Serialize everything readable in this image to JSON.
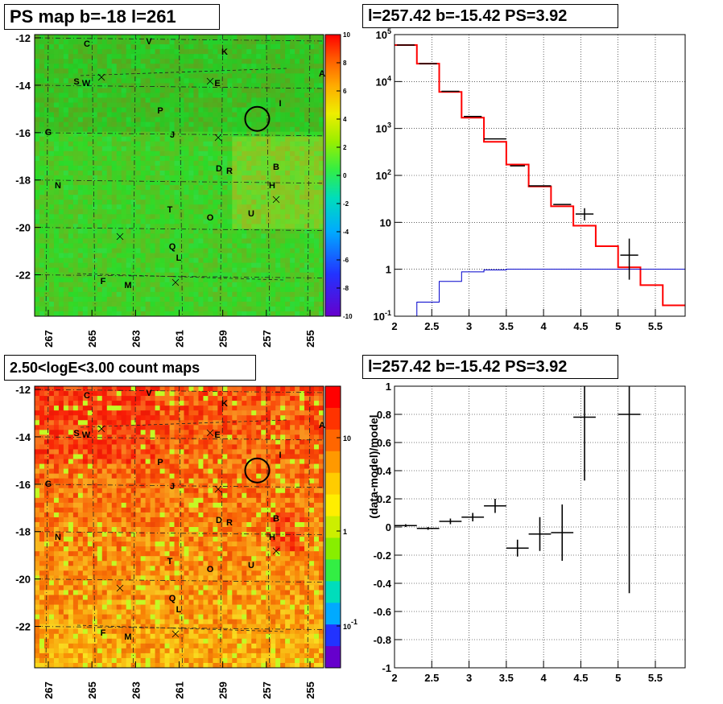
{
  "panels": {
    "ps_map_title": "PS map b=-18 l=261",
    "spectrum_title": "l=257.42 b=-15.42 PS=3.92",
    "count_map_title": "2.50<logE<3.00 count maps",
    "residual_title": "l=257.42 b=-15.42 PS=3.92"
  },
  "maps": {
    "b_ticks": [
      "-12",
      "-14",
      "-16",
      "-18",
      "-20",
      "-22"
    ],
    "l_ticks": [
      "267",
      "265",
      "263",
      "261",
      "259",
      "257",
      "255"
    ],
    "labels": [
      "C",
      "V",
      "K",
      "A",
      "S",
      "W",
      "E",
      "I",
      "P",
      "G",
      "J",
      "D",
      "R",
      "B",
      "N",
      "H",
      "T",
      "O",
      "U",
      "Q",
      "L",
      "F",
      "M"
    ],
    "ps_colorbar": [
      "10",
      "8",
      "6",
      "4",
      "2",
      "0",
      "-2",
      "-4",
      "-6",
      "-8",
      "-10"
    ],
    "count_colorbar": [
      "10",
      "1",
      "10-1"
    ]
  },
  "chart_data": [
    {
      "type": "heatmap",
      "title": "PS map b=-18 l=261",
      "x_ticks": [
        267,
        265,
        263,
        261,
        259,
        257,
        255
      ],
      "y_ticks": [
        -12,
        -14,
        -16,
        -18,
        -20,
        -22
      ],
      "colorbar_range": [
        -10,
        10
      ],
      "source_marker": {
        "l": 257.42,
        "b": -15.42
      }
    },
    {
      "type": "line",
      "title": "l=257.42 b=-15.42 PS=3.92",
      "log_y": true,
      "xlim": [
        2,
        5.9
      ],
      "ylim": [
        0.1,
        100000
      ],
      "x_ticks": [
        2,
        2.5,
        3,
        3.5,
        4,
        4.5,
        5,
        5.5
      ],
      "y_ticks": [
        "10-1",
        "1",
        "10",
        "102",
        "103",
        "104",
        "105"
      ],
      "grid": true,
      "series": [
        {
          "color": "#ff0000",
          "edges": [
            2.0,
            2.3,
            2.6,
            2.9,
            3.2,
            3.5,
            3.8,
            4.1,
            4.4,
            4.7,
            5.0,
            5.3,
            5.6,
            5.9
          ],
          "values": [
            60000,
            24000,
            6000,
            1700,
            520,
            170,
            58,
            22,
            8.5,
            3.1,
            1.1,
            0.46,
            0.17
          ]
        },
        {
          "color": "#0000cc",
          "edges": [
            2.3,
            2.6,
            2.9,
            3.2,
            3.5,
            3.8,
            4.1,
            4.4,
            4.7,
            5.0,
            5.3,
            5.6,
            5.9
          ],
          "values": [
            0.2,
            0.55,
            0.88,
            0.97,
            1.0,
            1.0,
            1.0,
            1.0,
            1.0,
            1.0,
            1.0,
            1.0
          ]
        },
        {
          "color": "#000000",
          "points": [
            {
              "x": 2.15,
              "y": 60000
            },
            {
              "x": 2.45,
              "y": 24000
            },
            {
              "x": 2.75,
              "y": 6200
            },
            {
              "x": 3.05,
              "y": 1800
            },
            {
              "x": 3.35,
              "y": 600,
              "xerr": 0.15
            },
            {
              "x": 3.65,
              "y": 160,
              "xerr": 0.1
            },
            {
              "x": 3.95,
              "y": 60,
              "xerr": 0.15
            },
            {
              "x": 4.25,
              "y": 24
            },
            {
              "x": 4.55,
              "y": 15,
              "ylo": 11,
              "yhi": 20
            },
            {
              "x": 5.15,
              "y": 2,
              "ylo": 0.6,
              "yhi": 4.5
            }
          ]
        }
      ]
    },
    {
      "type": "heatmap",
      "title": "2.50<logE<3.00 count maps",
      "x_ticks": [
        267,
        265,
        263,
        261,
        259,
        257,
        255
      ],
      "y_ticks": [
        -12,
        -14,
        -16,
        -18,
        -20,
        -22
      ],
      "colorbar_scale": "log",
      "source_marker": {
        "l": 257.42,
        "b": -15.42
      }
    },
    {
      "type": "scatter",
      "title": "l=257.42 b=-15.42 PS=3.92",
      "ylabel": "(data-model)/model",
      "xlim": [
        2,
        5.9
      ],
      "ylim": [
        -1,
        1
      ],
      "x_ticks": [
        2,
        2.5,
        3,
        3.5,
        4,
        4.5,
        5,
        5.5
      ],
      "y_ticks": [
        -1,
        -0.8,
        -0.6,
        -0.4,
        -0.2,
        0,
        0.2,
        0.4,
        0.6,
        0.8,
        1
      ],
      "grid": true,
      "points": [
        {
          "x": 2.15,
          "y": 0.01,
          "yerr": 0.01
        },
        {
          "x": 2.45,
          "y": -0.01,
          "yerr": 0.01
        },
        {
          "x": 2.75,
          "y": 0.04,
          "yerr": 0.02
        },
        {
          "x": 3.05,
          "y": 0.07,
          "yerr": 0.03
        },
        {
          "x": 3.35,
          "y": 0.15,
          "yerr": 0.05
        },
        {
          "x": 3.65,
          "y": -0.15,
          "yerr": 0.06
        },
        {
          "x": 3.95,
          "y": -0.05,
          "yerr": 0.12
        },
        {
          "x": 4.25,
          "y": -0.04,
          "yerr": 0.2
        },
        {
          "x": 4.55,
          "y": 0.78,
          "yerr": 0.45
        },
        {
          "x": 5.15,
          "y": 0.8,
          "yerr": 1.27
        }
      ]
    }
  ]
}
